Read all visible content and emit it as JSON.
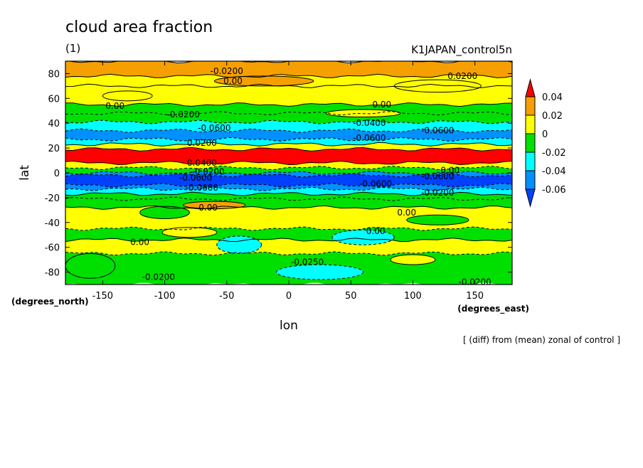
{
  "chart_data": {
    "type": "heatmap",
    "title": "cloud area fraction",
    "subtitle": "(1)",
    "run_label": "K1JAPAN_control5n",
    "xlabel": "lon",
    "ylabel": "lat",
    "x_unit": "(degrees_east)",
    "y_unit": "(degrees_north)",
    "note": "[ (diff) from (mean) zonal of control ]",
    "xlim": [
      -180,
      180
    ],
    "ylim": [
      -90,
      90
    ],
    "x_ticks": [
      "-150",
      "-100",
      "-50",
      "0",
      "50",
      "100",
      "150"
    ],
    "x_tick_values": [
      -150,
      -100,
      -50,
      0,
      50,
      100,
      150
    ],
    "y_ticks": [
      "80",
      "60",
      "40",
      "20",
      "0",
      "-20",
      "-40",
      "-60",
      "-80"
    ],
    "y_tick_values": [
      80,
      60,
      40,
      20,
      0,
      -20,
      -40,
      -60,
      -80
    ],
    "colorbar": {
      "labels": [
        "0.04",
        "0.02",
        "0",
        "-0.02",
        "-0.04",
        "-0.06"
      ],
      "colors": [
        "#ff0000",
        "#f5a000",
        "#ffff00",
        "#00e000",
        "#00ffff",
        "#0090ff",
        "#0040ff"
      ]
    },
    "bands": [
      {
        "lat_min": 78,
        "lat_max": 90,
        "level": 0.03
      },
      {
        "lat_min": 70,
        "lat_max": 78,
        "level": 0.01
      },
      {
        "lat_min": 55,
        "lat_max": 70,
        "level": 0.01
      },
      {
        "lat_min": 48,
        "lat_max": 55,
        "level": 0.0
      },
      {
        "lat_min": 41,
        "lat_max": 48,
        "level": -0.01
      },
      {
        "lat_min": 34,
        "lat_max": 41,
        "level": -0.03
      },
      {
        "lat_min": 27,
        "lat_max": 34,
        "level": -0.05
      },
      {
        "lat_min": 23,
        "lat_max": 27,
        "level": -0.03
      },
      {
        "lat_min": 19,
        "lat_max": 23,
        "level": 0.01
      },
      {
        "lat_min": 8,
        "lat_max": 19,
        "level": 0.05
      },
      {
        "lat_min": 4,
        "lat_max": 8,
        "level": 0.01
      },
      {
        "lat_min": 0,
        "lat_max": 4,
        "level": -0.01
      },
      {
        "lat_min": -2,
        "lat_max": 0,
        "level": -0.05
      },
      {
        "lat_min": -10,
        "lat_max": -2,
        "level": -0.07
      },
      {
        "lat_min": -13,
        "lat_max": -10,
        "level": -0.05
      },
      {
        "lat_min": -17,
        "lat_max": -13,
        "level": -0.03
      },
      {
        "lat_min": -21,
        "lat_max": -17,
        "level": 0.0
      },
      {
        "lat_min": -28,
        "lat_max": -21,
        "level": -0.01
      },
      {
        "lat_min": -45,
        "lat_max": -28,
        "level": 0.01
      },
      {
        "lat_min": -54,
        "lat_max": -45,
        "level": -0.01
      },
      {
        "lat_min": -65,
        "lat_max": -54,
        "level": 0.01
      },
      {
        "lat_min": -90,
        "lat_max": -65,
        "level": -0.01
      }
    ],
    "blobs": [
      {
        "lon": -130,
        "lat": 62,
        "rx": 20,
        "ry": 4,
        "level": 0.01
      },
      {
        "lon": -20,
        "lat": 74,
        "rx": 40,
        "ry": 4,
        "level": 0.03
      },
      {
        "lon": 120,
        "lat": 70,
        "rx": 35,
        "ry": 5,
        "level": 0.01
      },
      {
        "lon": 60,
        "lat": 48,
        "rx": 30,
        "ry": 3,
        "level": 0.01
      },
      {
        "lon": -60,
        "lat": -26,
        "rx": 25,
        "ry": 3,
        "level": 0.03
      },
      {
        "lon": -100,
        "lat": -32,
        "rx": 20,
        "ry": 5,
        "level": 0.0
      },
      {
        "lon": 120,
        "lat": -38,
        "rx": 25,
        "ry": 4,
        "level": 0.0
      },
      {
        "lon": -40,
        "lat": -58,
        "rx": 18,
        "ry": 7,
        "level": -0.03
      },
      {
        "lon": 60,
        "lat": -52,
        "rx": 25,
        "ry": 6,
        "level": -0.03
      },
      {
        "lon": 100,
        "lat": -70,
        "rx": 18,
        "ry": 4,
        "level": 0.01
      },
      {
        "lon": -80,
        "lat": -48,
        "rx": 22,
        "ry": 4,
        "level": 0.01
      },
      {
        "lon": -160,
        "lat": -75,
        "rx": 20,
        "ry": 10,
        "level": 0.0
      },
      {
        "lon": 25,
        "lat": -80,
        "rx": 35,
        "ry": 6,
        "level": -0.03
      }
    ],
    "contour_labels": [
      {
        "text": "-0.0200",
        "lon": -50,
        "lat": 82
      },
      {
        "text": "0.00",
        "lon": -45,
        "lat": 74
      },
      {
        "text": "0.0200",
        "lon": 140,
        "lat": 78
      },
      {
        "text": "0.00",
        "lon": -140,
        "lat": 54
      },
      {
        "text": "0.00",
        "lon": 75,
        "lat": 55
      },
      {
        "text": "-0.0200",
        "lon": -85,
        "lat": 47
      },
      {
        "text": "-0.0600",
        "lon": -60,
        "lat": 36
      },
      {
        "text": "-0.0400",
        "lon": 65,
        "lat": 40
      },
      {
        "text": "-0.0600",
        "lon": 120,
        "lat": 34
      },
      {
        "text": "-0.0600",
        "lon": 65,
        "lat": 28
      },
      {
        "text": "0.0200",
        "lon": -70,
        "lat": 24
      },
      {
        "text": "0.0400",
        "lon": -70,
        "lat": 8
      },
      {
        "text": "-0.0200",
        "lon": -65,
        "lat": 1
      },
      {
        "text": "-0.0600",
        "lon": -75,
        "lat": -4
      },
      {
        "text": "-0.0600",
        "lon": 120,
        "lat": -3
      },
      {
        "text": "0.00",
        "lon": 130,
        "lat": 2
      },
      {
        "text": "-0.0600",
        "lon": 70,
        "lat": -9
      },
      {
        "text": "-0.0200",
        "lon": 120,
        "lat": -16
      },
      {
        "text": "-0.0600",
        "lon": -70,
        "lat": -12
      },
      {
        "text": "0.00",
        "lon": -65,
        "lat": -28
      },
      {
        "text": "0.00",
        "lon": 95,
        "lat": -32
      },
      {
        "text": "0.00",
        "lon": 70,
        "lat": -47
      },
      {
        "text": "0.00",
        "lon": -120,
        "lat": -56
      },
      {
        "text": "-0.0250",
        "lon": 15,
        "lat": -72
      },
      {
        "text": "-0.0200",
        "lon": -105,
        "lat": -84
      },
      {
        "text": "-0.0200",
        "lon": 150,
        "lat": -88
      }
    ]
  }
}
